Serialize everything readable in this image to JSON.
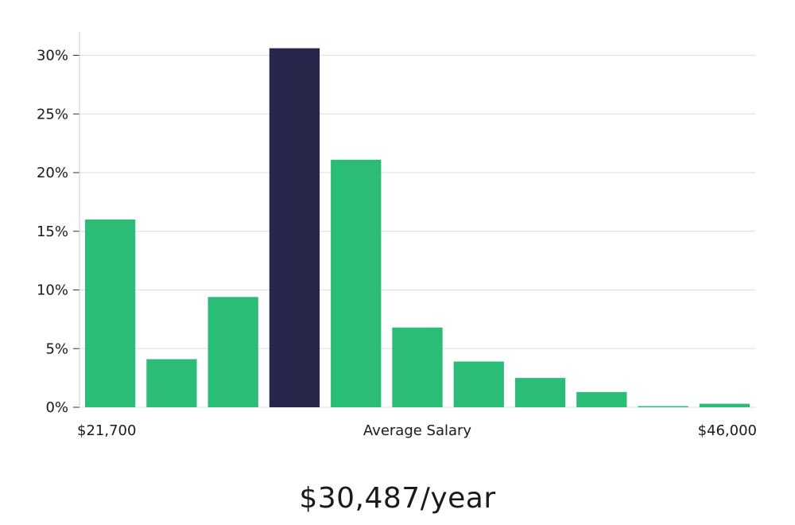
{
  "chart_data": {
    "type": "bar",
    "title": "",
    "x_start_label": "$21,700",
    "x_center_label": "Average Salary",
    "x_end_label": "$46,000",
    "ylabel": "",
    "ylim": [
      0,
      32
    ],
    "y_ticks": [
      0,
      5,
      10,
      15,
      20,
      25,
      30
    ],
    "y_tick_labels": [
      "0%",
      "5%",
      "10%",
      "15%",
      "20%",
      "25%",
      "30%"
    ],
    "grid": true,
    "highlight_index": 3,
    "colors": {
      "bar": "#2bbd77",
      "highlight": "#28264a",
      "grid": "#dddddd",
      "axis": "#cccccc"
    },
    "values": [
      16.0,
      4.1,
      9.4,
      30.6,
      21.1,
      6.8,
      3.9,
      2.5,
      1.3,
      0.1,
      0.3
    ]
  },
  "average_salary": "$30,487/year"
}
